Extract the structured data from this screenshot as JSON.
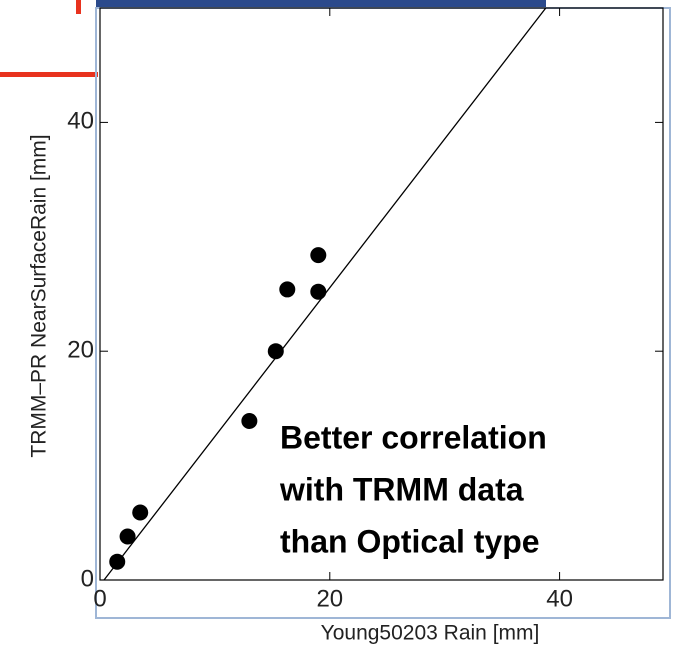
{
  "chart_data": {
    "type": "scatter",
    "x_label": "Young50203 Rain [mm]",
    "y_label": "TRMM–PR NearSurfaceRain [mm]",
    "annotation": [
      "Better correlation",
      "with TRMM data",
      "than Optical type"
    ],
    "x": [
      1.5,
      2.4,
      3.5,
      13,
      15.3,
      16.3,
      19,
      19
    ],
    "values": [
      1.6,
      3.8,
      5.9,
      13.9,
      20,
      25.4,
      25.2,
      28.4
    ],
    "color": "#000000",
    "fit_line": {
      "x": [
        0.35,
        38.8
      ],
      "y": [
        0,
        50
      ]
    },
    "xlim": [
      0,
      49
    ],
    "ylim": [
      0,
      50
    ],
    "xticks": [
      0,
      20,
      40
    ],
    "yticks": [
      0,
      20,
      40
    ]
  }
}
